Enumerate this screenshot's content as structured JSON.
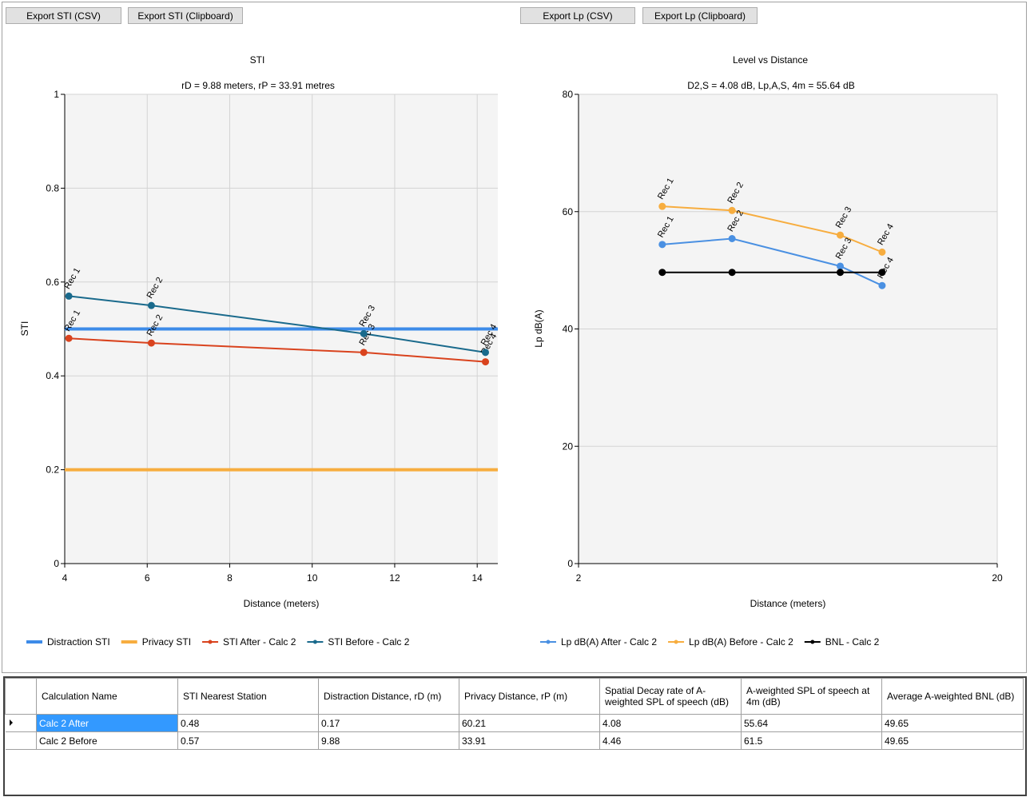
{
  "buttons": [
    "Export STI (CSV)",
    "Export STI (Clipboard)",
    "Export Lp (CSV)",
    "Export Lp (Clipboard)"
  ],
  "chart_data": [
    {
      "type": "line",
      "title": "STI",
      "subtitle": "rD = 9.88 meters, rP = 33.91 metres",
      "x_label": "Distance (meters)",
      "y_label": "STI",
      "xlim": [
        4,
        14.5
      ],
      "xticks": [
        4,
        6,
        8,
        10,
        12,
        14
      ],
      "ylim": [
        0,
        1
      ],
      "yticks": [
        0,
        0.2,
        0.4,
        0.6,
        0.8,
        1
      ],
      "grid": true,
      "reference_lines": [
        {
          "name": "Distraction STI",
          "color": "#3d8be8",
          "value": 0.5
        },
        {
          "name": "Privacy STI",
          "color": "#f7ad3f",
          "value": 0.2
        }
      ],
      "series": [
        {
          "name": "STI After - Calc 2",
          "color": "#d9431e",
          "x": [
            4.1,
            6.1,
            11.25,
            14.2
          ],
          "values": [
            0.48,
            0.47,
            0.45,
            0.43
          ],
          "point_labels": [
            "Rec 1",
            "Rec 2",
            "Rec 3",
            "Rec 4"
          ]
        },
        {
          "name": "STI Before - Calc 2",
          "color": "#1a6a8c",
          "x": [
            4.1,
            6.1,
            11.25,
            14.2
          ],
          "values": [
            0.57,
            0.55,
            0.49,
            0.45
          ],
          "point_labels": [
            "Rec 1",
            "Rec 2",
            "Rec 3",
            "Rec 4"
          ]
        }
      ]
    },
    {
      "type": "line",
      "title": "Level vs Distance",
      "subtitle": "D2,S = 4.08 dB, Lp,A,S, 4m = 55.64 dB",
      "x_label": "Distance (meters)",
      "y_label": "Lp dB(A)",
      "xlim": [
        2,
        20
      ],
      "xticks": [
        2,
        20
      ],
      "ylim": [
        0,
        80
      ],
      "yticks": [
        0,
        20,
        40,
        60,
        80
      ],
      "grid": true,
      "reference_lines": [],
      "series": [
        {
          "name": "Lp dB(A) After - Calc 2",
          "color": "#4a90e2",
          "x": [
            5.6,
            8.6,
            13.25,
            15.05
          ],
          "values": [
            54.4,
            55.4,
            50.7,
            47.4
          ],
          "point_labels": [
            "Rec 1",
            "Rec 2",
            "Rec 3",
            "Rec 4"
          ]
        },
        {
          "name": "Lp dB(A) Before - Calc 2",
          "color": "#f7ad3f",
          "x": [
            5.6,
            8.6,
            13.25,
            15.05
          ],
          "values": [
            60.9,
            60.2,
            56.0,
            53.1
          ],
          "point_labels": [
            "Rec 1",
            "Rec 2",
            "Rec 3",
            "Rec 4"
          ]
        },
        {
          "name": "BNL - Calc 2",
          "color": "#000000",
          "x": [
            5.6,
            8.6,
            13.25,
            15.05
          ],
          "values": [
            49.65,
            49.65,
            49.65,
            49.65
          ]
        }
      ]
    }
  ],
  "table": {
    "columns": [
      "Calculation Name",
      "STI Nearest Station",
      "Distraction Distance, rD (m)",
      "Privacy Distance, rP (m)",
      "Spatial Decay rate of A-weighted SPL of speech (dB)",
      "A-weighted SPL of speech at 4m (dB)",
      "Average A-weighted BNL (dB)"
    ],
    "rows": [
      [
        "Calc 2 After",
        0.48,
        0.17,
        60.21,
        4.08,
        55.64,
        49.65
      ],
      [
        "Calc 2 Before",
        0.57,
        9.88,
        33.91,
        4.46,
        61.5,
        49.65
      ]
    ]
  }
}
